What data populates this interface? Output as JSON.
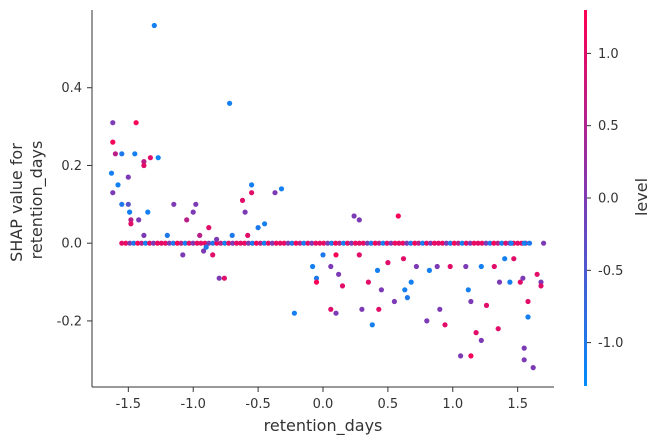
{
  "chart_data": {
    "type": "scatter",
    "xlabel": "retention_days",
    "ylabel_lines": [
      "SHAP value for",
      "retention_days"
    ],
    "xlim": [
      -1.78,
      1.78
    ],
    "ylim": [
      -0.37,
      0.6
    ],
    "x_ticks": [
      -1.5,
      -1.0,
      -0.5,
      0.0,
      0.5,
      1.0,
      1.5
    ],
    "x_tick_labels": [
      "-1.5",
      "-1.0",
      "-0.5",
      "0.0",
      "0.5",
      "1.0",
      "1.5"
    ],
    "y_ticks": [
      -0.2,
      0.0,
      0.2,
      0.4
    ],
    "y_tick_labels": [
      "-0.2",
      "0.0",
      "0.2",
      "0.4"
    ],
    "grid": false,
    "colorbar": {
      "label": "level",
      "range": [
        -1.3,
        1.3
      ],
      "ticks": [
        -1.0,
        -0.5,
        0.0,
        0.5,
        1.0
      ],
      "tick_labels": [
        "-1.0",
        "-0.5",
        "0.0",
        "0.5",
        "1.0"
      ],
      "low_color": "#008bfb",
      "mid_color": "#7d3ab5",
      "high_color": "#ff0052"
    },
    "points": [
      {
        "x": -1.62,
        "y": 0.31,
        "c": 0.0
      },
      {
        "x": -1.62,
        "y": 0.26,
        "c": 1.2
      },
      {
        "x": -1.6,
        "y": 0.23,
        "c": 0.6
      },
      {
        "x": -1.55,
        "y": 0.23,
        "c": -1.0
      },
      {
        "x": -1.45,
        "y": 0.23,
        "c": -1.1
      },
      {
        "x": -1.44,
        "y": 0.31,
        "c": 1.2
      },
      {
        "x": -1.38,
        "y": 0.21,
        "c": 0.6
      },
      {
        "x": -1.38,
        "y": 0.2,
        "c": 1.0
      },
      {
        "x": -1.33,
        "y": 0.22,
        "c": 1.0
      },
      {
        "x": -1.3,
        "y": 0.56,
        "c": -1.1
      },
      {
        "x": -1.27,
        "y": 0.22,
        "c": -1.2
      },
      {
        "x": -0.72,
        "y": 0.36,
        "c": -1.1
      },
      {
        "x": -1.63,
        "y": 0.18,
        "c": -1.1
      },
      {
        "x": -1.58,
        "y": 0.15,
        "c": -1.1
      },
      {
        "x": -1.62,
        "y": 0.13,
        "c": 0.0
      },
      {
        "x": -1.55,
        "y": 0.1,
        "c": -1.0
      },
      {
        "x": -1.5,
        "y": 0.17,
        "c": 0.0
      },
      {
        "x": -1.5,
        "y": 0.1,
        "c": -0.4
      },
      {
        "x": -1.49,
        "y": 0.08,
        "c": -1.1
      },
      {
        "x": -1.48,
        "y": 0.06,
        "c": 0.6
      },
      {
        "x": -1.48,
        "y": 0.05,
        "c": 1.0
      },
      {
        "x": -1.42,
        "y": 0.06,
        "c": 0.0
      },
      {
        "x": -1.35,
        "y": 0.08,
        "c": -1.1
      },
      {
        "x": -1.38,
        "y": 0.02,
        "c": 0.0
      },
      {
        "x": -1.15,
        "y": 0.1,
        "c": 0.0
      },
      {
        "x": -1.2,
        "y": 0.02,
        "c": -1.0
      },
      {
        "x": -1.05,
        "y": 0.06,
        "c": 0.6
      },
      {
        "x": -1.0,
        "y": 0.08,
        "c": 0.0
      },
      {
        "x": -0.98,
        "y": 0.1,
        "c": 0.0
      },
      {
        "x": -0.95,
        "y": 0.02,
        "c": 0.6
      },
      {
        "x": -0.88,
        "y": 0.04,
        "c": 1.0
      },
      {
        "x": -0.82,
        "y": 0.01,
        "c": 0.0
      },
      {
        "x": -0.62,
        "y": 0.11,
        "c": 1.0
      },
      {
        "x": -0.55,
        "y": 0.15,
        "c": -1.1
      },
      {
        "x": -0.55,
        "y": 0.13,
        "c": 1.0
      },
      {
        "x": -0.6,
        "y": 0.08,
        "c": 0.0
      },
      {
        "x": -0.5,
        "y": 0.04,
        "c": -1.0
      },
      {
        "x": -0.45,
        "y": 0.05,
        "c": -1.1
      },
      {
        "x": -0.37,
        "y": 0.13,
        "c": 0.0
      },
      {
        "x": -0.32,
        "y": 0.14,
        "c": -1.1
      },
      {
        "x": -0.7,
        "y": 0.02,
        "c": -1.0
      },
      {
        "x": -0.58,
        "y": 0.02,
        "c": 1.0
      },
      {
        "x": -0.22,
        "y": -0.18,
        "c": -1.1
      },
      {
        "x": -1.08,
        "y": -0.03,
        "c": 0.0
      },
      {
        "x": -0.92,
        "y": -0.02,
        "c": 0.0
      },
      {
        "x": -0.85,
        "y": -0.03,
        "c": 1.0
      },
      {
        "x": -0.8,
        "y": -0.09,
        "c": 0.0
      },
      {
        "x": -0.76,
        "y": -0.09,
        "c": 1.0
      },
      {
        "x": -0.9,
        "y": -0.01,
        "c": -1.0
      },
      {
        "x": -0.08,
        "y": -0.06,
        "c": -1.1
      },
      {
        "x": -0.05,
        "y": -0.09,
        "c": -1.0
      },
      {
        "x": -0.05,
        "y": -0.1,
        "c": 1.2
      },
      {
        "x": 0.06,
        "y": -0.06,
        "c": 0.0
      },
      {
        "x": 0.1,
        "y": -0.03,
        "c": 1.2
      },
      {
        "x": 0.12,
        "y": -0.08,
        "c": 0.0
      },
      {
        "x": 0.15,
        "y": -0.11,
        "c": 1.0
      },
      {
        "x": 0.06,
        "y": -0.17,
        "c": 1.0
      },
      {
        "x": 0.1,
        "y": -0.18,
        "c": 0.0
      },
      {
        "x": 0.0,
        "y": -0.03,
        "c": -1.0
      },
      {
        "x": 0.24,
        "y": 0.07,
        "c": 0.0
      },
      {
        "x": 0.28,
        "y": 0.06,
        "c": 0.0
      },
      {
        "x": 0.28,
        "y": -0.03,
        "c": 1.0
      },
      {
        "x": 0.3,
        "y": -0.17,
        "c": 0.0
      },
      {
        "x": 0.35,
        "y": -0.1,
        "c": 1.0
      },
      {
        "x": 0.38,
        "y": -0.21,
        "c": -1.1
      },
      {
        "x": 0.42,
        "y": -0.07,
        "c": -1.1
      },
      {
        "x": 0.43,
        "y": -0.17,
        "c": 1.0
      },
      {
        "x": 0.45,
        "y": -0.12,
        "c": 0.0
      },
      {
        "x": 0.5,
        "y": -0.05,
        "c": 1.0
      },
      {
        "x": 0.55,
        "y": -0.15,
        "c": 0.0
      },
      {
        "x": 0.58,
        "y": 0.07,
        "c": 1.2
      },
      {
        "x": 0.62,
        "y": -0.04,
        "c": 1.0
      },
      {
        "x": 0.63,
        "y": -0.12,
        "c": -1.1
      },
      {
        "x": 0.65,
        "y": -0.14,
        "c": -1.0
      },
      {
        "x": 0.68,
        "y": -0.1,
        "c": -1.1
      },
      {
        "x": 0.72,
        "y": -0.06,
        "c": 0.0
      },
      {
        "x": 0.8,
        "y": -0.2,
        "c": 0.0
      },
      {
        "x": 0.82,
        "y": -0.07,
        "c": -1.1
      },
      {
        "x": 0.88,
        "y": -0.06,
        "c": 0.0
      },
      {
        "x": 0.9,
        "y": -0.17,
        "c": 0.0
      },
      {
        "x": 0.94,
        "y": -0.21,
        "c": 1.0
      },
      {
        "x": 0.98,
        "y": -0.06,
        "c": 1.0
      },
      {
        "x": 1.06,
        "y": -0.29,
        "c": 0.0
      },
      {
        "x": 1.1,
        "y": -0.06,
        "c": 0.0
      },
      {
        "x": 1.12,
        "y": -0.12,
        "c": -1.1
      },
      {
        "x": 1.14,
        "y": -0.15,
        "c": 0.0
      },
      {
        "x": 1.14,
        "y": -0.29,
        "c": 1.2
      },
      {
        "x": 1.18,
        "y": -0.23,
        "c": 1.0
      },
      {
        "x": 1.22,
        "y": -0.25,
        "c": 0.0
      },
      {
        "x": 1.22,
        "y": -0.06,
        "c": -1.1
      },
      {
        "x": 1.26,
        "y": -0.16,
        "c": 1.0
      },
      {
        "x": 1.32,
        "y": -0.06,
        "c": 1.0
      },
      {
        "x": 1.35,
        "y": -0.22,
        "c": 1.0
      },
      {
        "x": 1.36,
        "y": -0.1,
        "c": 0.0
      },
      {
        "x": 1.4,
        "y": -0.04,
        "c": -1.1
      },
      {
        "x": 1.44,
        "y": -0.1,
        "c": -1.1
      },
      {
        "x": 1.47,
        "y": -0.04,
        "c": 1.0
      },
      {
        "x": 1.52,
        "y": -0.1,
        "c": 1.0
      },
      {
        "x": 1.54,
        "y": -0.09,
        "c": 0.0
      },
      {
        "x": 1.55,
        "y": -0.27,
        "c": 0.0
      },
      {
        "x": 1.55,
        "y": -0.3,
        "c": 0.0
      },
      {
        "x": 1.58,
        "y": -0.19,
        "c": -1.1
      },
      {
        "x": 1.58,
        "y": -0.15,
        "c": 1.0
      },
      {
        "x": 1.62,
        "y": -0.32,
        "c": 0.0
      },
      {
        "x": 1.65,
        "y": -0.08,
        "c": 1.0
      },
      {
        "x": 1.68,
        "y": -0.1,
        "c": 0.0
      },
      {
        "x": 1.68,
        "y": -0.11,
        "c": 1.0
      },
      {
        "x": 1.7,
        "y": 0.0,
        "c": 0.0
      },
      {
        "x": 1.45,
        "y": 0.0,
        "c": -1.1
      },
      {
        "x": 1.55,
        "y": 0.0,
        "c": -1.1
      }
    ],
    "zero_band": {
      "x_start": -1.55,
      "x_end": 1.62,
      "step": 0.0305,
      "y": 0.0
    }
  }
}
